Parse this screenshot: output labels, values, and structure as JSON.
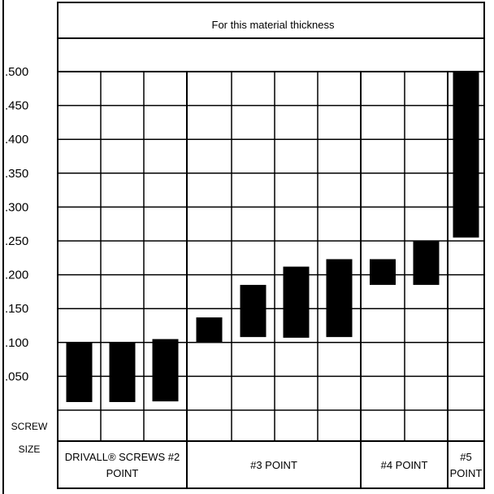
{
  "chart_data": {
    "type": "bar",
    "title": "For this material thickness",
    "ylim": [
      0,
      0.5
    ],
    "y_ticks": [
      ".500",
      ".450",
      ".400",
      ".350",
      ".300",
      ".250",
      ".200",
      ".150",
      ".100",
      ".050"
    ],
    "y_tick_values": [
      0.5,
      0.45,
      0.4,
      0.35,
      0.3,
      0.25,
      0.2,
      0.15,
      0.1,
      0.05
    ],
    "screw_size_label": [
      "SCREW",
      "SIZE"
    ],
    "groups": [
      {
        "label": [
          "DRIVALL® SCREWS #2",
          "POINT"
        ],
        "span": [
          0,
          3
        ]
      },
      {
        "label": [
          "#3 POINT"
        ],
        "span": [
          3,
          7
        ]
      },
      {
        "label": [
          "#4 POINT"
        ],
        "span": [
          7,
          9
        ]
      },
      {
        "label": [
          "#5",
          "POINT"
        ],
        "span": [
          9,
          10
        ]
      }
    ],
    "bars": [
      {
        "col": 0,
        "low": 0.012,
        "high": 0.1
      },
      {
        "col": 1,
        "low": 0.012,
        "high": 0.1
      },
      {
        "col": 2,
        "low": 0.013,
        "high": 0.105
      },
      {
        "col": 3,
        "low": 0.1,
        "high": 0.137
      },
      {
        "col": 4,
        "low": 0.108,
        "high": 0.185
      },
      {
        "col": 5,
        "low": 0.107,
        "high": 0.212
      },
      {
        "col": 6,
        "low": 0.108,
        "high": 0.223
      },
      {
        "col": 7,
        "low": 0.185,
        "high": 0.223
      },
      {
        "col": 8,
        "low": 0.185,
        "high": 0.25
      },
      {
        "col": 9,
        "low": 0.255,
        "high": 0.5
      }
    ],
    "grid": true,
    "legend": "none"
  }
}
